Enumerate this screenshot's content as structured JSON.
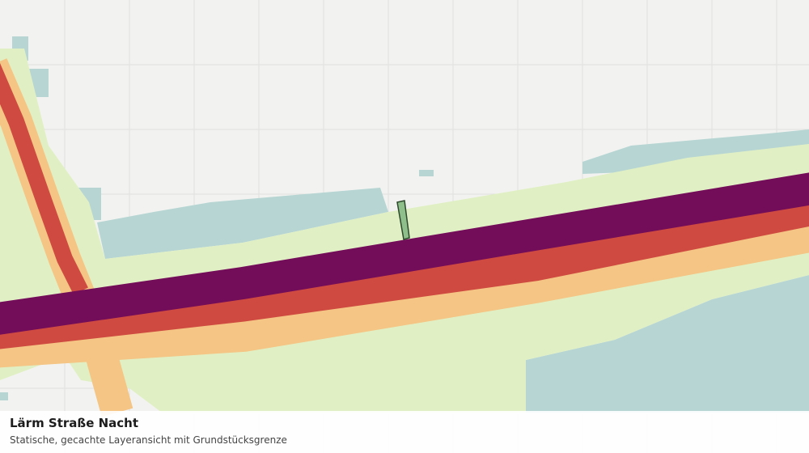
{
  "legend": {
    "title": "Lärm Straße Nacht",
    "subtitle": "Statische, gecachte Layeransicht mit Grundstücksgrenze"
  }
}
